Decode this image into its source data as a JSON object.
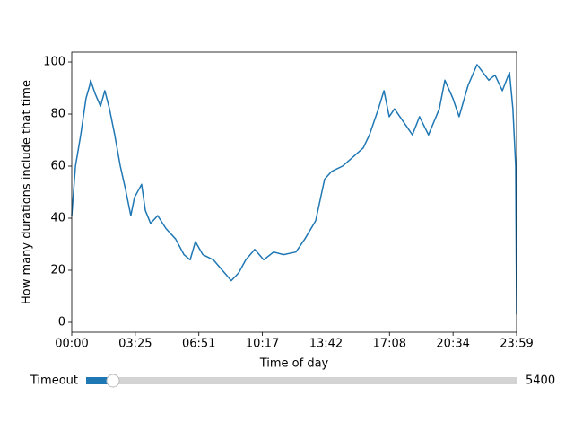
{
  "chart_data": {
    "type": "line",
    "xlabel": "Time of day",
    "ylabel": "How many durations include that time",
    "x": [
      0,
      12,
      29,
      46,
      58,
      61,
      75,
      93,
      107,
      122,
      139,
      157,
      174,
      191,
      203,
      226,
      238,
      255,
      278,
      305,
      336,
      363,
      383,
      400,
      424,
      458,
      487,
      516,
      540,
      563,
      592,
      621,
      653,
      685,
      725,
      754,
      789,
      818,
      841,
      876,
      905,
      943,
      963,
      992,
      1010,
      1027,
      1044,
      1073,
      1102,
      1125,
      1154,
      1189,
      1207,
      1233,
      1253,
      1282,
      1311,
      1349,
      1369,
      1393,
      1416,
      1427,
      1436,
      1439
    ],
    "series": [
      {
        "color": "#1f77b4",
        "values": [
          41,
          60,
          72,
          86,
          91,
          93,
          88,
          83,
          89,
          82,
          72,
          60,
          51,
          41,
          48,
          53,
          43,
          38,
          41,
          36,
          32,
          26,
          24,
          31,
          26,
          24,
          20,
          16,
          19,
          24,
          28,
          24,
          27,
          26,
          27,
          32,
          39,
          55,
          58,
          60,
          63,
          67,
          72,
          82,
          89,
          79,
          82,
          77,
          72,
          79,
          72,
          82,
          93,
          86,
          79,
          91,
          99,
          93,
          95,
          89,
          96,
          82,
          60,
          3
        ]
      }
    ],
    "xlim": [
      0,
      1439
    ],
    "xticks": [
      {
        "value": 0,
        "label": "00:00"
      },
      {
        "value": 205.57,
        "label": "03:25"
      },
      {
        "value": 411.14,
        "label": "06:51"
      },
      {
        "value": 616.71,
        "label": "10:17"
      },
      {
        "value": 822.29,
        "label": "13:42"
      },
      {
        "value": 1027.86,
        "label": "17:08"
      },
      {
        "value": 1233.43,
        "label": "20:34"
      },
      {
        "value": 1439,
        "label": "23:59"
      }
    ],
    "ylim": [
      -3.8,
      103.8
    ],
    "yticks": [
      0,
      20,
      40,
      60,
      80,
      100
    ]
  },
  "slider": {
    "label": "Timeout",
    "value": 5400,
    "range": [
      0,
      86400
    ],
    "color": "#1f77b4"
  }
}
